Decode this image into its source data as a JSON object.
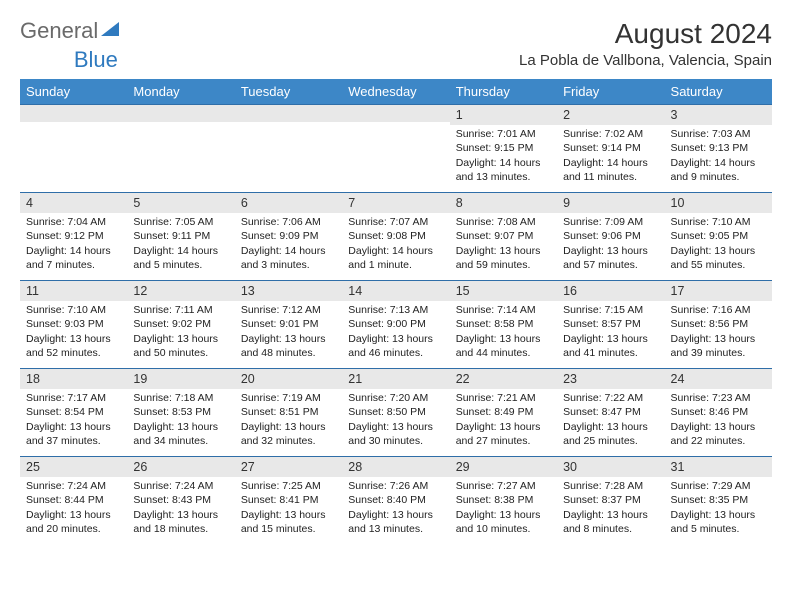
{
  "logo": {
    "text_a": "General",
    "text_b": "Blue"
  },
  "title": "August 2024",
  "subtitle": "La Pobla de Vallbona, Valencia, Spain",
  "colors": {
    "header_bg": "#3d87c7",
    "header_text": "#ffffff",
    "cell_border": "#2f6ea8",
    "daynum_bg": "#e8e8e8",
    "body_text": "#222222",
    "logo_gray": "#6a6a6a",
    "logo_blue": "#2f7abf"
  },
  "weekdays": [
    "Sunday",
    "Monday",
    "Tuesday",
    "Wednesday",
    "Thursday",
    "Friday",
    "Saturday"
  ],
  "grid": [
    [
      {
        "n": "",
        "sr": "",
        "ss": "",
        "d1": "",
        "d2": ""
      },
      {
        "n": "",
        "sr": "",
        "ss": "",
        "d1": "",
        "d2": ""
      },
      {
        "n": "",
        "sr": "",
        "ss": "",
        "d1": "",
        "d2": ""
      },
      {
        "n": "",
        "sr": "",
        "ss": "",
        "d1": "",
        "d2": ""
      },
      {
        "n": "1",
        "sr": "Sunrise: 7:01 AM",
        "ss": "Sunset: 9:15 PM",
        "d1": "Daylight: 14 hours",
        "d2": "and 13 minutes."
      },
      {
        "n": "2",
        "sr": "Sunrise: 7:02 AM",
        "ss": "Sunset: 9:14 PM",
        "d1": "Daylight: 14 hours",
        "d2": "and 11 minutes."
      },
      {
        "n": "3",
        "sr": "Sunrise: 7:03 AM",
        "ss": "Sunset: 9:13 PM",
        "d1": "Daylight: 14 hours",
        "d2": "and 9 minutes."
      }
    ],
    [
      {
        "n": "4",
        "sr": "Sunrise: 7:04 AM",
        "ss": "Sunset: 9:12 PM",
        "d1": "Daylight: 14 hours",
        "d2": "and 7 minutes."
      },
      {
        "n": "5",
        "sr": "Sunrise: 7:05 AM",
        "ss": "Sunset: 9:11 PM",
        "d1": "Daylight: 14 hours",
        "d2": "and 5 minutes."
      },
      {
        "n": "6",
        "sr": "Sunrise: 7:06 AM",
        "ss": "Sunset: 9:09 PM",
        "d1": "Daylight: 14 hours",
        "d2": "and 3 minutes."
      },
      {
        "n": "7",
        "sr": "Sunrise: 7:07 AM",
        "ss": "Sunset: 9:08 PM",
        "d1": "Daylight: 14 hours",
        "d2": "and 1 minute."
      },
      {
        "n": "8",
        "sr": "Sunrise: 7:08 AM",
        "ss": "Sunset: 9:07 PM",
        "d1": "Daylight: 13 hours",
        "d2": "and 59 minutes."
      },
      {
        "n": "9",
        "sr": "Sunrise: 7:09 AM",
        "ss": "Sunset: 9:06 PM",
        "d1": "Daylight: 13 hours",
        "d2": "and 57 minutes."
      },
      {
        "n": "10",
        "sr": "Sunrise: 7:10 AM",
        "ss": "Sunset: 9:05 PM",
        "d1": "Daylight: 13 hours",
        "d2": "and 55 minutes."
      }
    ],
    [
      {
        "n": "11",
        "sr": "Sunrise: 7:10 AM",
        "ss": "Sunset: 9:03 PM",
        "d1": "Daylight: 13 hours",
        "d2": "and 52 minutes."
      },
      {
        "n": "12",
        "sr": "Sunrise: 7:11 AM",
        "ss": "Sunset: 9:02 PM",
        "d1": "Daylight: 13 hours",
        "d2": "and 50 minutes."
      },
      {
        "n": "13",
        "sr": "Sunrise: 7:12 AM",
        "ss": "Sunset: 9:01 PM",
        "d1": "Daylight: 13 hours",
        "d2": "and 48 minutes."
      },
      {
        "n": "14",
        "sr": "Sunrise: 7:13 AM",
        "ss": "Sunset: 9:00 PM",
        "d1": "Daylight: 13 hours",
        "d2": "and 46 minutes."
      },
      {
        "n": "15",
        "sr": "Sunrise: 7:14 AM",
        "ss": "Sunset: 8:58 PM",
        "d1": "Daylight: 13 hours",
        "d2": "and 44 minutes."
      },
      {
        "n": "16",
        "sr": "Sunrise: 7:15 AM",
        "ss": "Sunset: 8:57 PM",
        "d1": "Daylight: 13 hours",
        "d2": "and 41 minutes."
      },
      {
        "n": "17",
        "sr": "Sunrise: 7:16 AM",
        "ss": "Sunset: 8:56 PM",
        "d1": "Daylight: 13 hours",
        "d2": "and 39 minutes."
      }
    ],
    [
      {
        "n": "18",
        "sr": "Sunrise: 7:17 AM",
        "ss": "Sunset: 8:54 PM",
        "d1": "Daylight: 13 hours",
        "d2": "and 37 minutes."
      },
      {
        "n": "19",
        "sr": "Sunrise: 7:18 AM",
        "ss": "Sunset: 8:53 PM",
        "d1": "Daylight: 13 hours",
        "d2": "and 34 minutes."
      },
      {
        "n": "20",
        "sr": "Sunrise: 7:19 AM",
        "ss": "Sunset: 8:51 PM",
        "d1": "Daylight: 13 hours",
        "d2": "and 32 minutes."
      },
      {
        "n": "21",
        "sr": "Sunrise: 7:20 AM",
        "ss": "Sunset: 8:50 PM",
        "d1": "Daylight: 13 hours",
        "d2": "and 30 minutes."
      },
      {
        "n": "22",
        "sr": "Sunrise: 7:21 AM",
        "ss": "Sunset: 8:49 PM",
        "d1": "Daylight: 13 hours",
        "d2": "and 27 minutes."
      },
      {
        "n": "23",
        "sr": "Sunrise: 7:22 AM",
        "ss": "Sunset: 8:47 PM",
        "d1": "Daylight: 13 hours",
        "d2": "and 25 minutes."
      },
      {
        "n": "24",
        "sr": "Sunrise: 7:23 AM",
        "ss": "Sunset: 8:46 PM",
        "d1": "Daylight: 13 hours",
        "d2": "and 22 minutes."
      }
    ],
    [
      {
        "n": "25",
        "sr": "Sunrise: 7:24 AM",
        "ss": "Sunset: 8:44 PM",
        "d1": "Daylight: 13 hours",
        "d2": "and 20 minutes."
      },
      {
        "n": "26",
        "sr": "Sunrise: 7:24 AM",
        "ss": "Sunset: 8:43 PM",
        "d1": "Daylight: 13 hours",
        "d2": "and 18 minutes."
      },
      {
        "n": "27",
        "sr": "Sunrise: 7:25 AM",
        "ss": "Sunset: 8:41 PM",
        "d1": "Daylight: 13 hours",
        "d2": "and 15 minutes."
      },
      {
        "n": "28",
        "sr": "Sunrise: 7:26 AM",
        "ss": "Sunset: 8:40 PM",
        "d1": "Daylight: 13 hours",
        "d2": "and 13 minutes."
      },
      {
        "n": "29",
        "sr": "Sunrise: 7:27 AM",
        "ss": "Sunset: 8:38 PM",
        "d1": "Daylight: 13 hours",
        "d2": "and 10 minutes."
      },
      {
        "n": "30",
        "sr": "Sunrise: 7:28 AM",
        "ss": "Sunset: 8:37 PM",
        "d1": "Daylight: 13 hours",
        "d2": "and 8 minutes."
      },
      {
        "n": "31",
        "sr": "Sunrise: 7:29 AM",
        "ss": "Sunset: 8:35 PM",
        "d1": "Daylight: 13 hours",
        "d2": "and 5 minutes."
      }
    ]
  ]
}
